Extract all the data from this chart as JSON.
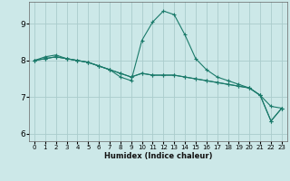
{
  "xlabel": "Humidex (Indice chaleur)",
  "bg_color": "#cce8e8",
  "grid_color": "#aacccc",
  "line_color": "#1a7a6a",
  "xlim": [
    -0.5,
    23.5
  ],
  "ylim": [
    5.8,
    9.6
  ],
  "yticks": [
    6,
    7,
    8,
    9
  ],
  "xticks": [
    0,
    1,
    2,
    3,
    4,
    5,
    6,
    7,
    8,
    9,
    10,
    11,
    12,
    13,
    14,
    15,
    16,
    17,
    18,
    19,
    20,
    21,
    22,
    23
  ],
  "series": [
    [
      8.0,
      8.1,
      8.15,
      8.05,
      8.0,
      7.95,
      7.85,
      7.75,
      7.55,
      7.45,
      8.55,
      9.05,
      9.35,
      9.25,
      8.7,
      8.05,
      7.75,
      7.55,
      7.45,
      7.35,
      7.25,
      7.05,
      6.35,
      6.7
    ],
    [
      8.0,
      8.05,
      8.1,
      8.05,
      8.0,
      7.95,
      7.85,
      7.75,
      7.65,
      7.55,
      7.65,
      7.6,
      7.6,
      7.6,
      7.55,
      7.5,
      7.45,
      7.4,
      7.35,
      7.3,
      7.25,
      7.05,
      6.35,
      6.7
    ],
    [
      8.0,
      8.05,
      8.1,
      8.05,
      8.0,
      7.95,
      7.85,
      7.75,
      7.65,
      7.55,
      7.65,
      7.6,
      7.6,
      7.6,
      7.55,
      7.5,
      7.45,
      7.4,
      7.35,
      7.3,
      7.25,
      7.05,
      6.75,
      6.7
    ]
  ]
}
